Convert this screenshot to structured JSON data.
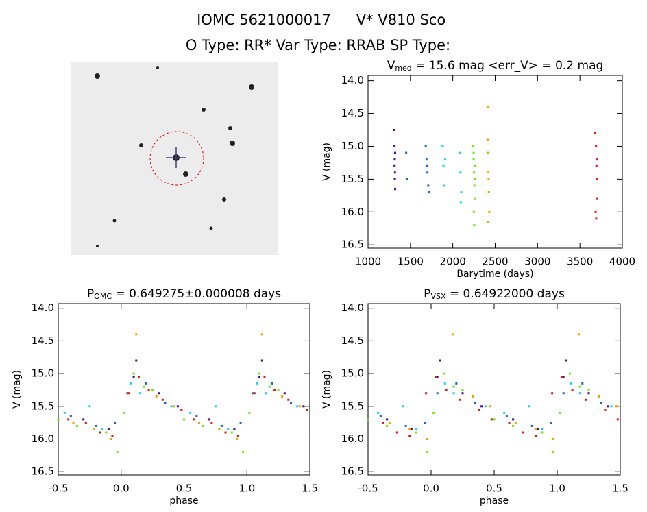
{
  "header": {
    "title_left": "IOMC 5621000017",
    "title_right": "V* V810 Sco",
    "subtitle": "O Type: RR*  Var Type: RRAB  SP Type:"
  },
  "chart_data": [
    {
      "type": "scatter",
      "title": {
        "main": "V",
        "sub": "med",
        "rest": " = 15.6 mag <err_V> = 0.2 mag"
      },
      "x_label": "Barytime (days)",
      "y_label": "V (mag)",
      "xlim": [
        1000,
        4000
      ],
      "ylim": [
        16.55,
        13.92
      ],
      "xticks": [
        1000,
        1500,
        2000,
        2500,
        3000,
        3500,
        4000
      ],
      "yticks": [
        {
          "value": 14,
          "label": "14.0"
        },
        14.5,
        {
          "value": 15,
          "label": "15.0"
        },
        15.5,
        {
          "value": 16,
          "label": "16.0"
        },
        16.5
      ],
      "series": [
        {
          "color": "#4b0c8c",
          "x": [
            1310,
            1312,
            1315,
            1318,
            1320,
            1313,
            1316,
            1319
          ],
          "values": [
            14.75,
            15.0,
            15.2,
            15.4,
            15.65,
            15.3,
            15.5,
            15.1
          ]
        },
        {
          "color": "#1e64c8",
          "x": [
            1450,
            1460,
            1680,
            1690,
            1700,
            1710,
            1720,
            1700
          ],
          "values": [
            15.1,
            15.5,
            15.0,
            15.2,
            15.4,
            15.6,
            15.7,
            15.3
          ]
        },
        {
          "color": "#1ed2e6",
          "x": [
            1880,
            1890,
            1900,
            1910,
            2080,
            2090,
            2100,
            2095
          ],
          "values": [
            15.0,
            15.3,
            15.6,
            15.2,
            15.1,
            15.4,
            15.7,
            15.85
          ]
        },
        {
          "color": "#6ee61e",
          "x": [
            2240,
            2245,
            2250,
            2255,
            2260,
            2248,
            2252,
            2258,
            2262,
            2246
          ],
          "values": [
            15.0,
            15.2,
            15.4,
            15.6,
            15.8,
            16.0,
            16.2,
            15.3,
            15.5,
            15.1
          ]
        },
        {
          "color": "#f0a000",
          "x": [
            2410,
            2415,
            2420,
            2425,
            2430,
            2418,
            2422,
            2412
          ],
          "values": [
            14.9,
            15.1,
            15.4,
            15.7,
            16.0,
            16.15,
            15.5,
            14.4
          ]
        },
        {
          "color": "#d81e0a",
          "x": [
            3680,
            3690,
            3695,
            3700,
            3705,
            3685,
            3692,
            3698
          ],
          "values": [
            14.8,
            15.0,
            15.3,
            15.5,
            15.8,
            16.0,
            16.1,
            15.2
          ]
        }
      ]
    },
    {
      "type": "scatter",
      "title": {
        "main": "P",
        "sub": "OMC",
        "rest": " = 0.649275±0.000008 days"
      },
      "x_label": "phase",
      "y_label": "V (mag)",
      "xlim": [
        -0.5,
        1.5
      ],
      "ylim": [
        16.55,
        13.93
      ],
      "xticks": [
        -0.5,
        {
          "value": 0,
          "label": "0.0"
        },
        0.5,
        {
          "value": 1,
          "label": "1.0"
        },
        1.5
      ],
      "yticks": [
        {
          "value": 14,
          "label": "14.0"
        },
        14.5,
        {
          "value": 15,
          "label": "15.0"
        },
        15.5,
        {
          "value": 16,
          "label": "16.0"
        },
        16.5
      ],
      "series": [
        {
          "color": "#4b0c8c",
          "x": [
            0.1,
            0.12,
            0.3,
            0.45,
            0.7,
            0.9,
            1.1,
            1.12,
            1.3,
            1.45,
            -0.3,
            -0.1
          ],
          "values": [
            15.05,
            14.8,
            15.3,
            15.5,
            15.7,
            15.85,
            15.05,
            14.8,
            15.3,
            15.5,
            15.7,
            15.85
          ]
        },
        {
          "color": "#1e64c8",
          "x": [
            0.05,
            0.2,
            0.35,
            0.6,
            0.8,
            0.95,
            1.05,
            1.2,
            1.35,
            -0.4,
            -0.2,
            -0.05
          ],
          "values": [
            15.3,
            15.15,
            15.45,
            15.65,
            15.8,
            15.75,
            15.3,
            15.15,
            15.45,
            15.65,
            15.8,
            15.75
          ]
        },
        {
          "color": "#1ed2e6",
          "x": [
            0.08,
            0.15,
            0.4,
            0.55,
            0.75,
            0.85,
            1.08,
            1.15,
            1.4,
            -0.45,
            -0.25,
            -0.15
          ],
          "values": [
            15.15,
            15.3,
            15.5,
            15.6,
            15.5,
            15.85,
            15.15,
            15.3,
            15.5,
            15.6,
            15.5,
            15.85
          ]
        },
        {
          "color": "#6ee61e",
          "x": [
            0.02,
            0.1,
            0.18,
            0.25,
            0.5,
            0.65,
            0.88,
            0.97,
            1.02,
            1.1,
            1.18,
            1.25,
            -0.5,
            -0.35,
            -0.12,
            -0.03
          ],
          "values": [
            15.6,
            15.0,
            15.2,
            15.25,
            15.7,
            15.8,
            15.9,
            16.2,
            15.6,
            15.0,
            15.2,
            15.25,
            15.7,
            15.8,
            15.9,
            16.2
          ]
        },
        {
          "color": "#f0a000",
          "x": [
            0.12,
            0.28,
            0.42,
            0.62,
            0.78,
            0.92,
            1.12,
            1.28,
            1.42,
            -0.38,
            -0.22,
            -0.08
          ],
          "values": [
            14.4,
            15.35,
            15.5,
            15.75,
            15.85,
            16.0,
            14.4,
            15.35,
            15.5,
            15.75,
            15.85,
            16.0
          ]
        },
        {
          "color": "#d81e0a",
          "x": [
            0.06,
            0.14,
            0.22,
            0.33,
            0.48,
            0.58,
            0.72,
            0.83,
            0.93,
            1.06,
            1.14,
            1.22,
            1.33,
            1.48,
            -0.42,
            -0.28,
            -0.17,
            -0.07
          ],
          "values": [
            15.3,
            15.05,
            15.25,
            15.4,
            15.55,
            15.7,
            15.75,
            15.9,
            15.95,
            15.3,
            15.05,
            15.25,
            15.4,
            15.55,
            15.7,
            15.75,
            15.9,
            15.95
          ]
        }
      ]
    },
    {
      "type": "scatter",
      "title": {
        "main": "P",
        "sub": "VSX",
        "rest": " = 0.64922000 days"
      },
      "x_label": "phase",
      "y_label": "V (mag)",
      "xlim": [
        -0.5,
        1.5
      ],
      "ylim": [
        16.55,
        13.93
      ],
      "xticks": [
        -0.5,
        {
          "value": 0,
          "label": "0.0"
        },
        0.5,
        {
          "value": 1,
          "label": "1.0"
        },
        1.5
      ],
      "yticks": [
        {
          "value": 14,
          "label": "14.0"
        },
        14.5,
        {
          "value": 15,
          "label": "15.0"
        },
        15.5,
        {
          "value": 16,
          "label": "16.0"
        },
        16.5
      ],
      "series": [
        {
          "color": "#4b0c8c",
          "x": [
            0.05,
            0.07,
            0.25,
            0.4,
            0.65,
            0.85,
            1.05,
            1.07,
            1.25,
            1.4,
            -0.35,
            -0.15
          ],
          "values": [
            15.05,
            14.8,
            15.3,
            15.5,
            15.7,
            15.85,
            15.05,
            14.8,
            15.3,
            15.5,
            15.7,
            15.85
          ]
        },
        {
          "color": "#1e64c8",
          "x": [
            0.05,
            0.2,
            0.35,
            0.6,
            0.8,
            0.95,
            1.05,
            1.2,
            1.35,
            -0.4,
            -0.2,
            -0.05
          ],
          "values": [
            15.3,
            15.15,
            15.45,
            15.65,
            15.8,
            15.75,
            15.3,
            15.15,
            15.45,
            15.65,
            15.8,
            15.75
          ]
        },
        {
          "color": "#1ed2e6",
          "x": [
            0.11,
            0.18,
            0.43,
            0.58,
            0.78,
            0.88,
            1.11,
            1.18,
            1.43,
            -0.42,
            -0.22,
            -0.12
          ],
          "values": [
            15.15,
            15.3,
            15.5,
            15.6,
            15.5,
            15.85,
            15.15,
            15.3,
            15.5,
            15.6,
            15.5,
            15.85
          ]
        },
        {
          "color": "#6ee61e",
          "x": [
            0.02,
            0.1,
            0.18,
            0.25,
            0.5,
            0.65,
            0.88,
            0.97,
            1.02,
            1.1,
            1.18,
            1.25,
            -0.5,
            -0.35,
            -0.12,
            -0.03
          ],
          "values": [
            15.6,
            15.0,
            15.2,
            15.25,
            15.7,
            15.8,
            15.9,
            16.2,
            15.6,
            15.0,
            15.2,
            15.25,
            15.7,
            15.8,
            15.9,
            16.2
          ]
        },
        {
          "color": "#f0a000",
          "x": [
            0.17,
            0.33,
            0.47,
            0.67,
            0.83,
            0.97,
            1.17,
            1.33,
            1.47,
            -0.33,
            -0.17,
            -0.03
          ],
          "values": [
            14.4,
            15.35,
            15.5,
            15.75,
            15.85,
            16.0,
            14.4,
            15.35,
            15.5,
            15.75,
            15.85,
            16.0
          ]
        },
        {
          "color": "#d81e0a",
          "x": [
            0.96,
            0.04,
            0.12,
            0.23,
            0.38,
            0.48,
            0.62,
            0.73,
            0.83,
            -0.04,
            1.04,
            1.12,
            1.23,
            1.38,
            1.48,
            -0.38,
            -0.27,
            -0.17
          ],
          "values": [
            15.3,
            15.05,
            15.25,
            15.4,
            15.55,
            15.7,
            15.75,
            15.9,
            15.95,
            15.3,
            15.05,
            15.25,
            15.4,
            15.55,
            15.7,
            15.75,
            15.9,
            15.95
          ]
        }
      ]
    }
  ]
}
